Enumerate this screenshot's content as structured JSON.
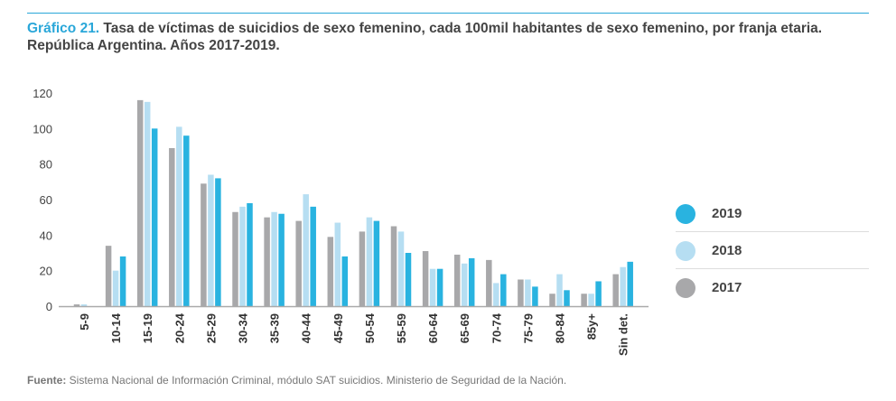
{
  "title": {
    "number": "Gráfico 21.",
    "text": " Tasa de víctimas de suicidios de sexo femenino, cada 100mil habitantes de sexo femenino, por franja etaria. República Argentina. Años 2017-2019."
  },
  "source": {
    "label": "Fuente:",
    "text": " Sistema Nacional de Información Criminal, módulo SAT suicidios. Ministerio de Seguridad de la Nación."
  },
  "chart_data": {
    "type": "bar",
    "title": "",
    "xlabel": "",
    "ylabel": "",
    "ylim": [
      0,
      120
    ],
    "yticks": [
      0,
      20,
      40,
      60,
      80,
      100,
      120
    ],
    "grid": false,
    "legend_placement": "right",
    "categories": [
      "5-9",
      "10-14",
      "15-19",
      "20-24",
      "25-29",
      "30-34",
      "35-39",
      "40-44",
      "45-49",
      "50-54",
      "55-59",
      "60-64",
      "65-69",
      "70-74",
      "75-79",
      "80-84",
      "85y+",
      "Sin det."
    ],
    "series": [
      {
        "name": "2017",
        "color": "#a8a8aa",
        "values": [
          1,
          34,
          116,
          89,
          69,
          53,
          50,
          48,
          39,
          42,
          45,
          31,
          29,
          26,
          15,
          7,
          7,
          18
        ]
      },
      {
        "name": "2018",
        "color": "#b6def2",
        "values": [
          1,
          20,
          115,
          101,
          74,
          56,
          53,
          63,
          47,
          50,
          42,
          21,
          24,
          13,
          15,
          18,
          7,
          22
        ]
      },
      {
        "name": "2019",
        "color": "#29b3e0",
        "values": [
          0,
          28,
          100,
          96,
          72,
          58,
          52,
          56,
          28,
          48,
          30,
          21,
          27,
          18,
          11,
          9,
          14,
          25
        ]
      }
    ],
    "legend_order": [
      "2019",
      "2018",
      "2017"
    ]
  }
}
